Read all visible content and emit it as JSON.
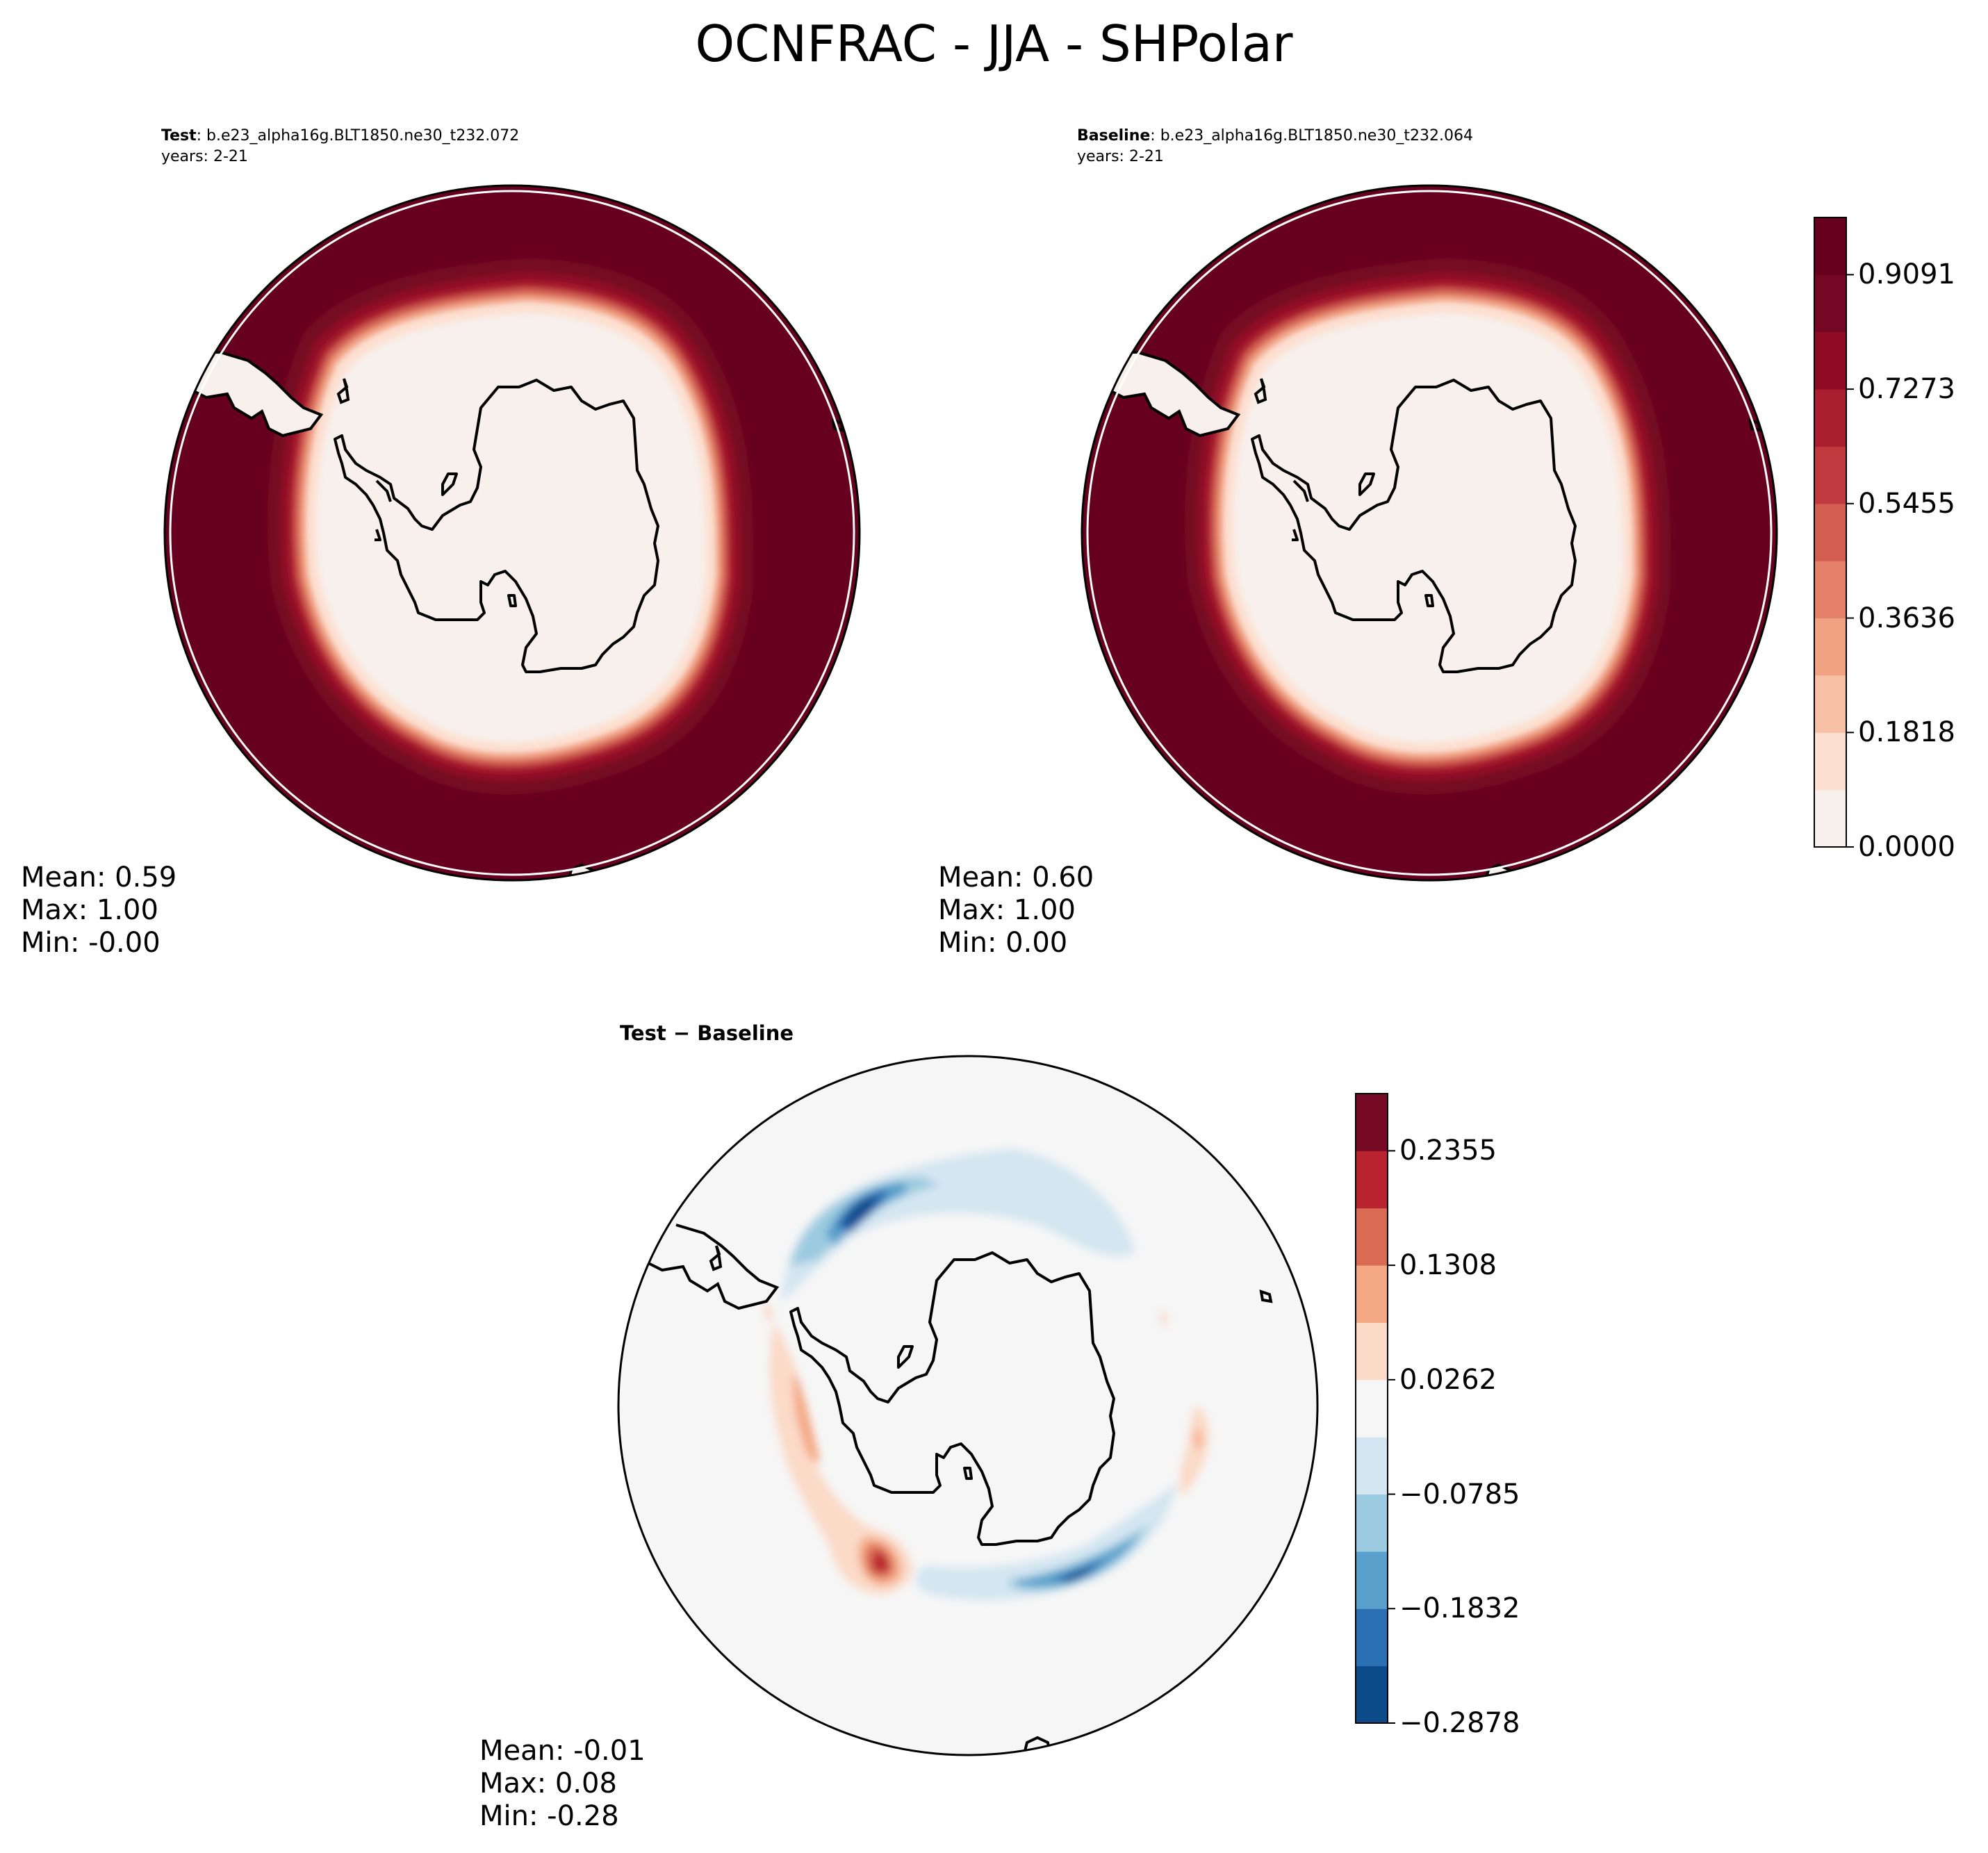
{
  "title": "OCNFRAC - JJA - SHPolar",
  "test": {
    "label_bold": "Test",
    "label_rest": ": b.e23_alpha16g.BLT1850.ne30_t232.072",
    "years": "years: 2-21",
    "stats": {
      "mean": "Mean:  0.59",
      "max": "Max:  1.00",
      "min": "Min: -0.00"
    }
  },
  "baseline": {
    "label_bold": "Baseline",
    "label_rest": ": b.e23_alpha16g.BLT1850.ne30_t232.064",
    "years": "years: 2-21",
    "stats": {
      "mean": "Mean:  0.60",
      "max": "Max:  1.00",
      "min": "Min:  0.00"
    }
  },
  "difference": {
    "title": "Test − Baseline",
    "stats": {
      "mean": "Mean: -0.01",
      "max": "Max:  0.08",
      "min": "Min: -0.28"
    }
  },
  "colorbar_main": {
    "ticks": [
      "0.0000",
      "0.1818",
      "0.3636",
      "0.5455",
      "0.7273",
      "0.9091"
    ],
    "colors": [
      "#f7f0ec",
      "#fde0d1",
      "#f8c1a6",
      "#f1a283",
      "#e4806a",
      "#d25f52",
      "#c0393f",
      "#aa1e2f",
      "#900b26",
      "#740723",
      "#67001f"
    ]
  },
  "colorbar_diff": {
    "ticks": [
      "−0.2878",
      "−0.1832",
      "−0.0785",
      "0.0262",
      "0.1308",
      "0.2355"
    ],
    "colors": [
      "#0d4a8a",
      "#2b70b3",
      "#5aa0cc",
      "#9ccae0",
      "#d4e6f1",
      "#f6f6f6",
      "#fbdac8",
      "#f4a884",
      "#d96b55",
      "#b8232f",
      "#760a24"
    ]
  },
  "chart_data": {
    "type": "heatmap",
    "title": "OCNFRAC - JJA - SHPolar",
    "panels": [
      {
        "name": "Test",
        "case": "b.e23_alpha16g.BLT1850.ne30_t232.072",
        "years": "2-21",
        "mean": 0.59,
        "max": 1.0,
        "min": -0.0
      },
      {
        "name": "Baseline",
        "case": "b.e23_alpha16g.BLT1850.ne30_t232.064",
        "years": "2-21",
        "mean": 0.6,
        "max": 1.0,
        "min": 0.0
      },
      {
        "name": "Test − Baseline",
        "mean": -0.01,
        "max": 0.08,
        "min": -0.28
      }
    ],
    "colorbar_levels_main": [
      0.0,
      0.1818,
      0.3636,
      0.5455,
      0.7273,
      0.9091
    ],
    "colorbar_levels_diff": [
      -0.2878,
      -0.1832,
      -0.0785,
      0.0262,
      0.1308,
      0.2355
    ],
    "projection": "south polar stereographic"
  }
}
